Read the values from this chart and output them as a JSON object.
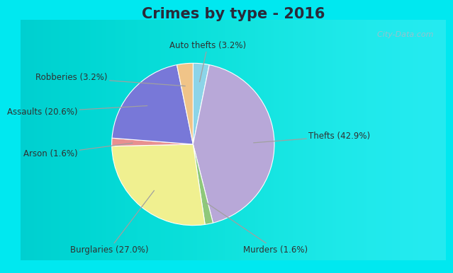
{
  "title": "Crimes by type - 2016",
  "labels": [
    "Thefts",
    "Burglaries",
    "Murders",
    "Assaults",
    "Arson",
    "Robberies",
    "Auto thefts"
  ],
  "values": [
    42.9,
    27.0,
    1.6,
    20.6,
    1.6,
    3.2,
    3.2
  ],
  "colors": [
    "#b8a8d8",
    "#f0f090",
    "#8ec87a",
    "#7878d8",
    "#e89090",
    "#f0c488",
    "#8cd4e8"
  ],
  "label_texts": [
    "Thefts (42.9%)",
    "Burglaries (27.0%)",
    "Murders (1.6%)",
    "Assaults (20.6%)",
    "Arson (1.6%)",
    "Robberies (3.2%)",
    "Auto thefts (3.2%)"
  ],
  "bg_cyan": "#00e8f0",
  "bg_inner": "#cce8d8",
  "bg_inner_light": "#e8f4f0",
  "title_fontsize": 15,
  "label_fontsize": 8.5,
  "watermark": "  City-Data.com",
  "title_color": "#2a2a3a",
  "label_color": "#303030",
  "line_color": "#a0a0a0"
}
